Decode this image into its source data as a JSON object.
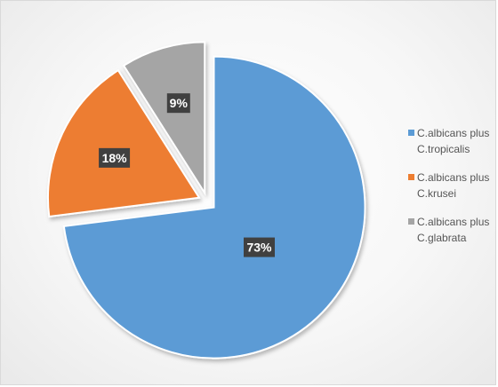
{
  "chart_data": {
    "type": "pie",
    "categories": [
      "C.albicans plus C.tropicalis",
      "C.albicans plus C.krusei",
      "C.albicans plus C.glabrata"
    ],
    "values": [
      73,
      18,
      9
    ],
    "data_labels": [
      "73%",
      "18%",
      "9%"
    ],
    "colors": [
      "#5b9bd5",
      "#ed7d31",
      "#a5a5a5"
    ],
    "exploded": true,
    "legend_position": "right",
    "legend": [
      {
        "line1": "C.albicans plus",
        "line2": "C.tropicalis"
      },
      {
        "line1": "C.albicans plus",
        "line2": "C.krusei"
      },
      {
        "line1": "C.albicans plus",
        "line2": "C.glabrata"
      }
    ]
  }
}
